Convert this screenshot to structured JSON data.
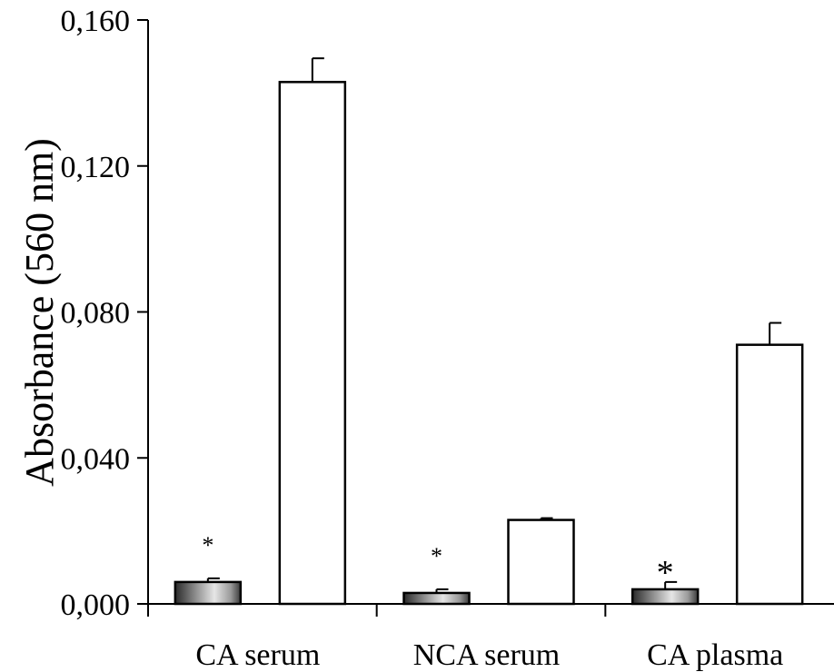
{
  "chart_data": {
    "type": "bar",
    "title": "",
    "xlabel": "",
    "ylabel": "Absorbance (560 nm)",
    "ylim": [
      0,
      0.16
    ],
    "yticks": [
      "0,000",
      "0,040",
      "0,080",
      "0,120",
      "0,160"
    ],
    "categories": [
      "CA serum",
      "NCA serum",
      "CA plasma"
    ],
    "series": [
      {
        "values": [
          0.006,
          0.003,
          0.004
        ],
        "errors": [
          0.001,
          0.001,
          0.002
        ],
        "fill": "gradient-gray"
      },
      {
        "values": [
          0.143,
          0.023,
          0.071
        ],
        "errors": [
          0.0065,
          0.0005,
          0.006
        ],
        "fill": "#ffffff"
      }
    ],
    "annotations": [
      "*",
      "*",
      "*"
    ],
    "grid": false,
    "legend": "none"
  }
}
